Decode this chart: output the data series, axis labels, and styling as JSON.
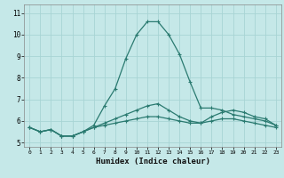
{
  "xlabel": "Humidex (Indice chaleur)",
  "background_color": "#c5e8e8",
  "grid_color": "#a8d4d4",
  "line_color": "#2a7a70",
  "xlim": [
    -0.5,
    23.5
  ],
  "ylim": [
    4.8,
    11.4
  ],
  "x_ticks": [
    0,
    1,
    2,
    3,
    4,
    5,
    6,
    7,
    8,
    9,
    10,
    11,
    12,
    13,
    14,
    15,
    16,
    17,
    18,
    19,
    20,
    21,
    22,
    23
  ],
  "y_ticks": [
    5,
    6,
    7,
    8,
    9,
    10,
    11
  ],
  "series": [
    [
      5.7,
      5.5,
      5.6,
      5.3,
      5.3,
      5.5,
      5.8,
      6.7,
      7.5,
      8.9,
      10.0,
      10.6,
      10.6,
      10.0,
      9.1,
      7.8,
      6.6,
      6.6,
      6.5,
      6.3,
      6.2,
      6.1,
      6.0,
      5.8
    ],
    [
      5.7,
      5.5,
      5.6,
      5.3,
      5.3,
      5.5,
      5.7,
      5.9,
      6.1,
      6.3,
      6.5,
      6.7,
      6.8,
      6.5,
      6.2,
      6.0,
      5.9,
      6.2,
      6.4,
      6.5,
      6.4,
      6.2,
      6.1,
      5.8
    ],
    [
      5.7,
      5.5,
      5.6,
      5.3,
      5.3,
      5.5,
      5.7,
      5.8,
      5.9,
      6.0,
      6.1,
      6.2,
      6.2,
      6.1,
      6.0,
      5.9,
      5.9,
      6.0,
      6.1,
      6.1,
      6.0,
      5.9,
      5.8,
      5.7
    ]
  ]
}
